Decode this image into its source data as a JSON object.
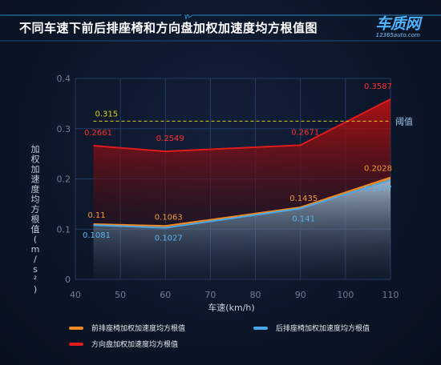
{
  "header": {
    "title": "不同车速下前后排座椅和方向盘加权加速度均方根值图",
    "logo_main": "车质网",
    "logo_sub": "12365auto.com"
  },
  "colors": {
    "front": "#f08a24",
    "rear": "#4aa8e8",
    "steering": "#e01b1b",
    "threshold": "#d8d21a",
    "axis_text": "#6f7f96"
  },
  "chart_data": {
    "type": "area",
    "title": "不同车速下前后排座椅和方向盘加权加速度均方根值图",
    "xlabel": "车速(km/h)",
    "ylabel": "加权加速度均方根值(m/s²)",
    "xlim": [
      40,
      110
    ],
    "ylim": [
      0,
      0.4
    ],
    "x_ticks": [
      "40",
      "50",
      "60",
      "70",
      "80",
      "90",
      "100",
      "110"
    ],
    "y_ticks": [
      "0",
      "0.1",
      "0.2",
      "0.3",
      "0.4"
    ],
    "x": [
      44,
      60,
      90,
      110
    ],
    "series": [
      {
        "name": "方向盘加权加速度均方根值",
        "key": "steering",
        "values": [
          0.2661,
          0.2549,
          0.2671,
          0.3587
        ],
        "labels": [
          "0.2661",
          "0.2549",
          "0.2671",
          "0.3587"
        ]
      },
      {
        "name": "前排座椅加权加速度均方根值",
        "key": "front",
        "values": [
          0.11,
          0.1063,
          0.1435,
          0.2028
        ],
        "labels": [
          "0.11",
          "0.1063",
          "0.1435",
          "0.2028"
        ]
      },
      {
        "name": "后排座椅加权加速度均方根值",
        "key": "rear",
        "values": [
          0.1081,
          0.1027,
          0.141,
          0.1977
        ],
        "labels": [
          "0.1081",
          "0.1027",
          "0.141",
          "0.1977"
        ]
      }
    ],
    "threshold": {
      "value": 0.315,
      "value_label": "0.315",
      "label": "阈值"
    },
    "grid": true,
    "legend_position": "bottom"
  }
}
